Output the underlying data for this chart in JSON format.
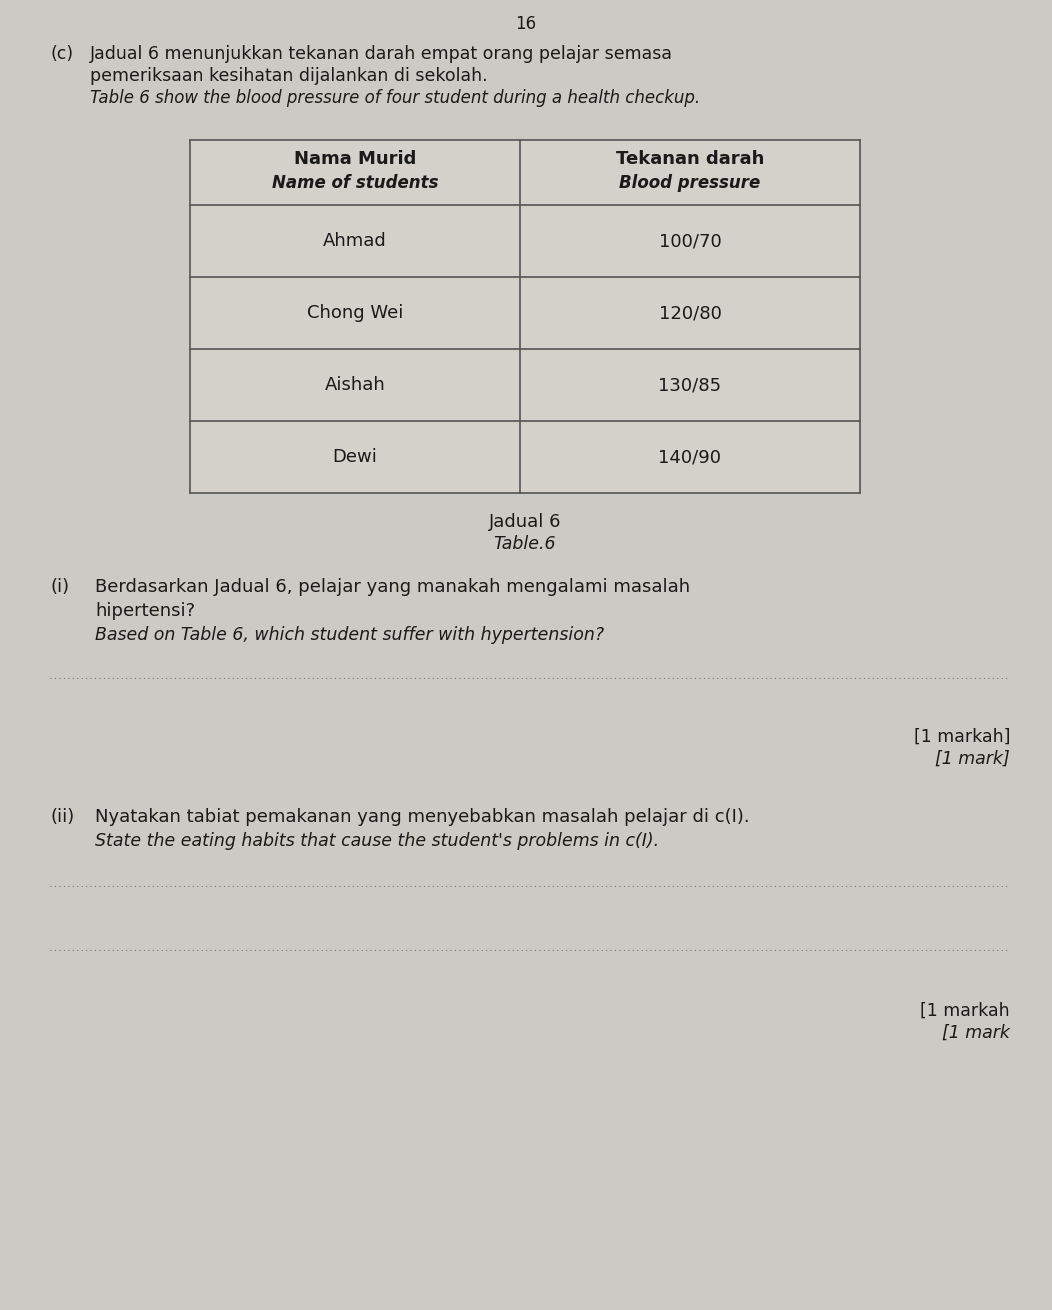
{
  "bg_color": "#cccac4",
  "page_number": "16",
  "section_c_label": "(c)",
  "intro_text_line1": "Jadual 6 menunjukkan tekanan darah empat orang pelajar semasa",
  "intro_text_line2": "pemeriksaan kesihatan dijalankan di sekolah.",
  "intro_text_line3_italic": "Table 6 show the blood pressure of four student during a health checkup.",
  "table_header_col1_line1": "Nama Murid",
  "table_header_col1_line2": "Name of students",
  "table_header_col2_line1": "Tekanan darah",
  "table_header_col2_line2": "Blood pressure",
  "table_data": [
    [
      "Ahmad",
      "100/70"
    ],
    [
      "Chong Wei",
      "120/80"
    ],
    [
      "Aishah",
      "130/85"
    ],
    [
      "Dewi",
      "140/90"
    ]
  ],
  "table_caption_line1": "Jadual 6",
  "table_caption_line2": "Table.6",
  "q1_num": "(i)",
  "q1_text_line1": "Berdasarkan Jadual 6, pelajar yang manakah mengalami masalah",
  "q1_text_line2": "hipertensi?",
  "q1_italic_line": "Based on Table 6, which student suffer with hypertension?",
  "q1_mark_line1": "[1 markah]",
  "q1_mark_line2": "[1 mark]",
  "q2_num": "(ii)",
  "q2_text_line1": "Nyatakan tabiat pemakanan yang menyebabkan masalah pelajar di c(I).",
  "q2_italic_line": "State the eating habits that cause the student's problems in c(I).",
  "q2_mark_line1": "[1 markah",
  "q2_mark_line2": "[1 mark"
}
